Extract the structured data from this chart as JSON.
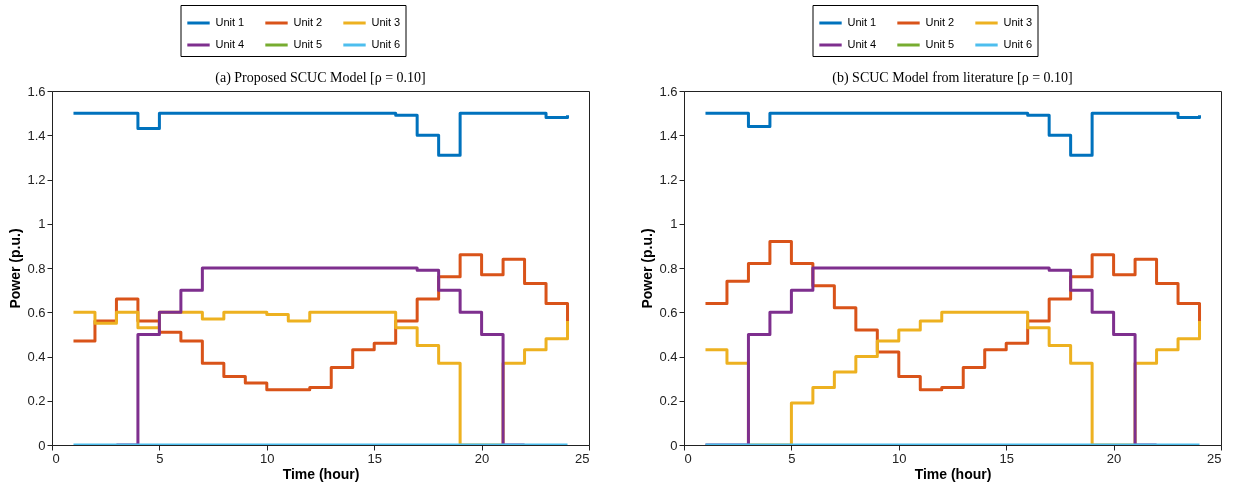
{
  "chart_data": [
    {
      "type": "step",
      "title": "(a) Proposed SCUC Model [ρ = 0.10]",
      "xlabel": "Time (hour)",
      "ylabel": "Power (p.u.)",
      "x": [
        1,
        2,
        3,
        4,
        5,
        6,
        7,
        8,
        9,
        10,
        11,
        12,
        13,
        14,
        15,
        16,
        17,
        18,
        19,
        20,
        21,
        22,
        23,
        24
      ],
      "series": [
        {
          "name": "Unit 1",
          "color": "#0072bd",
          "values": [
            1.5,
            1.5,
            1.5,
            1.43,
            1.5,
            1.5,
            1.5,
            1.5,
            1.5,
            1.5,
            1.5,
            1.5,
            1.5,
            1.5,
            1.5,
            1.49,
            1.4,
            1.31,
            1.5,
            1.5,
            1.5,
            1.5,
            1.48,
            1.49
          ]
        },
        {
          "name": "Unit 2",
          "color": "#d95319",
          "values": [
            0.47,
            0.56,
            0.66,
            0.56,
            0.51,
            0.47,
            0.37,
            0.31,
            0.28,
            0.25,
            0.25,
            0.26,
            0.35,
            0.43,
            0.46,
            0.56,
            0.66,
            0.76,
            0.86,
            0.77,
            0.84,
            0.73,
            0.64,
            0.56
          ]
        },
        {
          "name": "Unit 3",
          "color": "#edb120",
          "values": [
            0.6,
            0.55,
            0.6,
            0.53,
            0.6,
            0.6,
            0.57,
            0.6,
            0.6,
            0.59,
            0.56,
            0.6,
            0.6,
            0.6,
            0.6,
            0.53,
            0.45,
            0.37,
            0,
            0,
            0.37,
            0.43,
            0.48,
            0.56
          ]
        },
        {
          "name": "Unit 4",
          "color": "#7e2f8e",
          "values": [
            null,
            null,
            0,
            0.5,
            0.6,
            0.7,
            0.8,
            0.8,
            0.8,
            0.8,
            0.8,
            0.8,
            0.8,
            0.8,
            0.8,
            0.8,
            0.79,
            0.7,
            0.6,
            0.5,
            0,
            0,
            null,
            null
          ]
        },
        {
          "name": "Unit 5",
          "color": "#77ac30",
          "values": [
            null,
            null,
            null,
            null,
            null,
            null,
            null,
            null,
            null,
            null,
            null,
            null,
            null,
            null,
            null,
            null,
            null,
            null,
            null,
            null,
            null,
            null,
            null,
            null
          ]
        },
        {
          "name": "Unit 6",
          "color": "#4dbeee",
          "values": [
            0,
            0,
            0,
            0,
            0,
            0,
            0,
            0,
            0,
            0,
            0,
            0,
            0,
            0,
            0,
            0,
            0,
            0,
            0,
            0,
            0,
            0,
            0,
            0
          ]
        }
      ],
      "xlim": [
        0,
        25
      ],
      "xticks": [
        0,
        5,
        10,
        15,
        20,
        25
      ],
      "ylim": [
        0,
        1.6
      ],
      "yticks": [
        0,
        0.2,
        0.4,
        0.6,
        0.8,
        1,
        1.2,
        1.4,
        1.6
      ],
      "legend": "top",
      "grid": false
    },
    {
      "type": "step",
      "title": "(b) SCUC Model from literature [ρ = 0.10]",
      "xlabel": "Time (hour)",
      "ylabel": "Power (p.u.)",
      "x": [
        1,
        2,
        3,
        4,
        5,
        6,
        7,
        8,
        9,
        10,
        11,
        12,
        13,
        14,
        15,
        16,
        17,
        18,
        19,
        20,
        21,
        22,
        23,
        24
      ],
      "series": [
        {
          "name": "Unit 1",
          "color": "#0072bd",
          "values": [
            1.5,
            1.5,
            1.44,
            1.5,
            1.5,
            1.5,
            1.5,
            1.5,
            1.5,
            1.5,
            1.5,
            1.5,
            1.5,
            1.5,
            1.5,
            1.49,
            1.4,
            1.31,
            1.5,
            1.5,
            1.5,
            1.5,
            1.48,
            1.49
          ]
        },
        {
          "name": "Unit 2",
          "color": "#d95319",
          "values": [
            0.64,
            0.74,
            0.82,
            0.92,
            0.82,
            0.72,
            0.62,
            0.52,
            0.42,
            0.31,
            0.25,
            0.26,
            0.35,
            0.43,
            0.46,
            0.56,
            0.66,
            0.76,
            0.86,
            0.77,
            0.84,
            0.73,
            0.64,
            0.56
          ]
        },
        {
          "name": "Unit 3",
          "color": "#edb120",
          "values": [
            0.43,
            0.37,
            0,
            0,
            0.19,
            0.26,
            0.33,
            0.4,
            0.47,
            0.52,
            0.56,
            0.6,
            0.6,
            0.6,
            0.6,
            0.53,
            0.45,
            0.37,
            0,
            0,
            0.37,
            0.43,
            0.48,
            0.56
          ]
        },
        {
          "name": "Unit 4",
          "color": "#7e2f8e",
          "values": [
            0,
            0,
            0.5,
            0.6,
            0.7,
            0.8,
            0.8,
            0.8,
            0.8,
            0.8,
            0.8,
            0.8,
            0.8,
            0.8,
            0.8,
            0.8,
            0.79,
            0.7,
            0.6,
            0.5,
            0,
            0,
            null,
            null
          ]
        },
        {
          "name": "Unit 5",
          "color": "#77ac30",
          "values": [
            null,
            null,
            null,
            null,
            null,
            null,
            null,
            null,
            null,
            null,
            null,
            null,
            null,
            null,
            null,
            null,
            null,
            null,
            null,
            null,
            null,
            null,
            null,
            null
          ]
        },
        {
          "name": "Unit 6",
          "color": "#4dbeee",
          "values": [
            0,
            0,
            0,
            0,
            0,
            0,
            0,
            0,
            0,
            0,
            0,
            0,
            0,
            0,
            0,
            0,
            0,
            0,
            0,
            0,
            0,
            0,
            0,
            0
          ]
        }
      ],
      "xlim": [
        0,
        25
      ],
      "xticks": [
        0,
        5,
        10,
        15,
        20,
        25
      ],
      "ylim": [
        0,
        1.6
      ],
      "yticks": [
        0,
        0.2,
        0.4,
        0.6,
        0.8,
        1,
        1.2,
        1.4,
        1.6
      ],
      "legend": "top",
      "grid": false
    }
  ]
}
